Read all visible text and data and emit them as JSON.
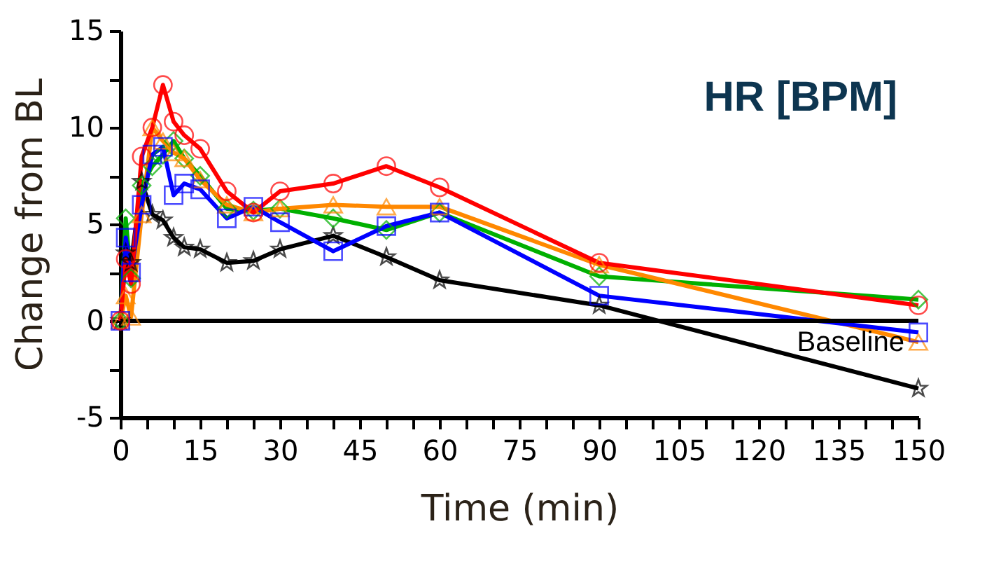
{
  "chart_data": {
    "type": "line",
    "title": "HR [BPM]",
    "xlabel": "Time (min)",
    "ylabel": "Change from BL",
    "x": [
      0,
      1,
      2,
      4,
      6,
      8,
      10,
      12,
      15,
      20,
      25,
      30,
      40,
      50,
      60,
      90,
      150
    ],
    "series": [
      {
        "name": "Baseline",
        "color": "#000000",
        "marker": "star",
        "values": [
          0,
          3.5,
          3.0,
          7.2,
          5.5,
          5.2,
          4.3,
          3.8,
          3.7,
          3.0,
          3.1,
          3.7,
          4.4,
          3.3,
          2.1,
          0.8,
          -3.5
        ]
      },
      {
        "color": "#00b000",
        "marker": "diamond",
        "values": [
          0,
          5.3,
          2.2,
          7.0,
          8.0,
          8.6,
          9.3,
          8.4,
          7.5,
          5.8,
          5.7,
          5.8,
          5.3,
          4.7,
          5.6,
          2.3,
          1.1
        ]
      },
      {
        "color": "#ff8800",
        "marker": "triangle",
        "values": [
          0,
          1.3,
          0.2,
          5.5,
          10.0,
          9.3,
          8.7,
          8.4,
          7.3,
          6.0,
          5.6,
          5.8,
          6.0,
          5.9,
          5.9,
          2.9,
          -1.1
        ]
      },
      {
        "color": "#0000ff",
        "marker": "square",
        "values": [
          0,
          4.3,
          2.5,
          6.0,
          8.6,
          9.0,
          6.5,
          7.1,
          6.8,
          5.3,
          5.9,
          5.1,
          3.6,
          4.9,
          5.6,
          1.3,
          -0.6
        ]
      },
      {
        "color": "#ff0000",
        "marker": "circle",
        "values": [
          0,
          3.2,
          1.9,
          8.5,
          10.0,
          12.2,
          10.3,
          9.6,
          8.9,
          6.7,
          5.6,
          6.7,
          7.1,
          8.0,
          6.9,
          3.0,
          0.8
        ]
      }
    ],
    "xlim": [
      0,
      150
    ],
    "ylim": [
      -5,
      15
    ],
    "xticks": [
      0,
      {
        "value": 5,
        "label": null
      },
      {
        "value": 10,
        "label": null
      },
      15,
      {
        "value": 20,
        "label": null
      },
      {
        "value": 25,
        "label": null
      },
      30,
      {
        "value": 35,
        "label": null
      },
      {
        "value": 40,
        "label": null
      },
      45,
      {
        "value": 50,
        "label": null
      },
      {
        "value": 55,
        "label": null
      },
      60,
      {
        "value": 65,
        "label": null
      },
      {
        "value": 70,
        "label": null
      },
      75,
      {
        "value": 80,
        "label": null
      },
      {
        "value": 85,
        "label": null
      },
      90,
      {
        "value": 95,
        "label": null
      },
      {
        "value": 100,
        "label": null
      },
      105,
      {
        "value": 110,
        "label": null
      },
      {
        "value": 115,
        "label": null
      },
      120,
      {
        "value": 125,
        "label": null
      },
      {
        "value": 130,
        "label": null
      },
      135,
      {
        "value": 140,
        "label": null
      },
      {
        "value": 145,
        "label": null
      },
      150
    ],
    "yticks": [
      -5,
      {
        "value": -2.5,
        "label": null
      },
      0,
      {
        "value": 2.5,
        "label": null
      },
      5,
      {
        "value": 7.5,
        "label": null
      },
      10,
      {
        "value": 12.5,
        "label": null
      },
      15
    ],
    "ref_lines": [
      {
        "axis": "y",
        "value": 0,
        "color": "#000000"
      }
    ],
    "grid": false,
    "line_style": "solid"
  }
}
